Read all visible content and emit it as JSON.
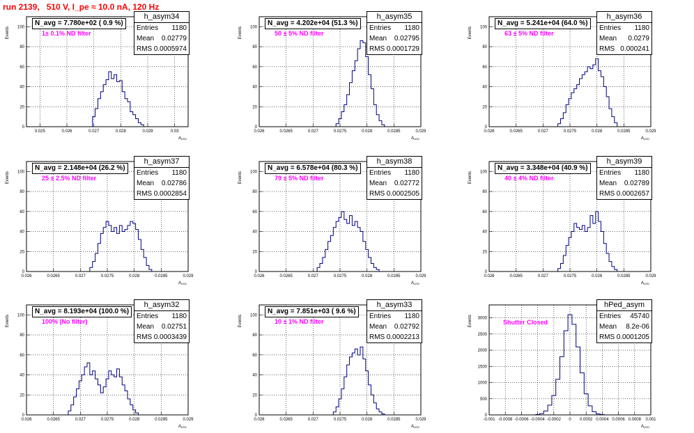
{
  "title": "run 2139,   510 V, I_pe ≈ 10.0 nA, 120 Hz",
  "ylabel": "Events",
  "xlabel": "A",
  "xlabel_sub": "LED",
  "chart_data": [
    {
      "type": "bar",
      "name": "h_asym34",
      "navg": "N_avg = 7.780e+02 ( 0.9 %)",
      "filter": "1± 0.1% ND filter",
      "entries": "1180",
      "mean": "0.02779",
      "rms": "0.0005974",
      "xlim": [
        0.0245,
        0.0305
      ],
      "xticks": [
        "0.025",
        "0.026",
        "0.027",
        "0.028",
        "0.029",
        "0.03"
      ],
      "yticks": [
        "0",
        "20",
        "40",
        "60",
        "80",
        "100"
      ],
      "ylim": [
        0,
        110
      ],
      "x": [
        0.027,
        0.0271,
        0.0272,
        0.0273,
        0.0274,
        0.0275,
        0.0276,
        0.0277,
        0.0278,
        0.0279,
        0.028,
        0.0281,
        0.0282,
        0.0283,
        0.0284,
        0.0285,
        0.0286,
        0.0287,
        0.0288
      ],
      "values": [
        10,
        18,
        28,
        35,
        42,
        47,
        55,
        48,
        52,
        45,
        46,
        35,
        28,
        25,
        15,
        12,
        8,
        4,
        2
      ]
    },
    {
      "type": "bar",
      "name": "h_asym35",
      "navg": "N_avg = 4.202e+04 (51.3 %)",
      "filter": "50 ± 5% ND filter",
      "entries": "1180",
      "mean": "0.02795",
      "rms": "0.0001729",
      "xlim": [
        0.026,
        0.029
      ],
      "xticks": [
        "0.026",
        "0.0265",
        "0.027",
        "0.0275",
        "0.028",
        "0.0285",
        "0.029"
      ],
      "yticks": [
        "0",
        "20",
        "40",
        "60",
        "80",
        "100"
      ],
      "ylim": [
        0,
        110
      ],
      "x": [
        0.02745,
        0.0275,
        0.02755,
        0.0276,
        0.02765,
        0.0277,
        0.02775,
        0.0278,
        0.02785,
        0.0279,
        0.02795,
        0.028,
        0.02805,
        0.0281,
        0.02815,
        0.0282,
        0.02825,
        0.0283
      ],
      "values": [
        3,
        8,
        15,
        22,
        32,
        44,
        56,
        66,
        78,
        86,
        84,
        70,
        52,
        38,
        22,
        12,
        6,
        2
      ]
    },
    {
      "type": "bar",
      "name": "h_asym36",
      "navg": "N_avg = 5.241e+04 (64.0 %)",
      "filter": "63 ± 5% ND filter",
      "entries": "1180",
      "mean": "0.0279",
      "rms": "0.000241",
      "xlim": [
        0.026,
        0.029
      ],
      "xticks": [
        "0.026",
        "0.0265",
        "0.027",
        "0.0275",
        "0.028",
        "0.0285",
        "0.029"
      ],
      "yticks": [
        "0",
        "20",
        "40",
        "60",
        "80",
        "100"
      ],
      "ylim": [
        0,
        110
      ],
      "x": [
        0.0273,
        0.02735,
        0.0274,
        0.02745,
        0.0275,
        0.02755,
        0.0276,
        0.02765,
        0.0277,
        0.02775,
        0.0278,
        0.02785,
        0.0279,
        0.02795,
        0.028,
        0.02805,
        0.0281,
        0.02815,
        0.0282,
        0.02825,
        0.0283,
        0.02835
      ],
      "values": [
        3,
        8,
        14,
        22,
        28,
        34,
        38,
        42,
        48,
        52,
        55,
        60,
        58,
        62,
        68,
        56,
        50,
        40,
        30,
        18,
        10,
        4
      ]
    },
    {
      "type": "bar",
      "name": "h_asym37",
      "navg": "N_avg = 2.148e+04 (26.2 %)",
      "filter": "25 ± 2.5% ND filter",
      "entries": "1180",
      "mean": "0.02786",
      "rms": "0.0002854",
      "xlim": [
        0.026,
        0.029
      ],
      "xticks": [
        "0.026",
        "0.0265",
        "0.027",
        "0.0275",
        "0.028",
        "0.0285",
        "0.029"
      ],
      "yticks": [
        "0",
        "20",
        "40",
        "60",
        "80",
        "100"
      ],
      "ylim": [
        0,
        110
      ],
      "x": [
        0.0272,
        0.02725,
        0.0273,
        0.02735,
        0.0274,
        0.02745,
        0.0275,
        0.02755,
        0.0276,
        0.02765,
        0.0277,
        0.02775,
        0.0278,
        0.02785,
        0.0279,
        0.02795,
        0.028,
        0.02805,
        0.0281,
        0.02815,
        0.0282,
        0.02825,
        0.0283
      ],
      "values": [
        4,
        10,
        18,
        28,
        38,
        44,
        50,
        46,
        40,
        44,
        38,
        46,
        40,
        42,
        46,
        50,
        48,
        42,
        32,
        22,
        14,
        6,
        2
      ]
    },
    {
      "type": "bar",
      "name": "h_asym38",
      "navg": "N_avg = 6.578e+04 (80.3 %)",
      "filter": "79 ± 5% ND filter",
      "entries": "1180",
      "mean": "0.02772",
      "rms": "0.0002505",
      "xlim": [
        0.026,
        0.029
      ],
      "xticks": [
        "0.026",
        "0.0265",
        "0.027",
        "0.0275",
        "0.028",
        "0.0285",
        "0.029"
      ],
      "yticks": [
        "0",
        "20",
        "40",
        "60",
        "80",
        "100"
      ],
      "ylim": [
        0,
        110
      ],
      "x": [
        0.0271,
        0.02715,
        0.0272,
        0.02725,
        0.0273,
        0.02735,
        0.0274,
        0.02745,
        0.0275,
        0.02755,
        0.0276,
        0.02765,
        0.0277,
        0.02775,
        0.0278,
        0.02785,
        0.0279,
        0.02795,
        0.028,
        0.02805,
        0.0281,
        0.02815,
        0.0282
      ],
      "values": [
        4,
        8,
        14,
        22,
        30,
        36,
        44,
        50,
        54,
        60,
        52,
        48,
        56,
        46,
        50,
        44,
        40,
        30,
        22,
        14,
        8,
        4,
        2
      ]
    },
    {
      "type": "bar",
      "name": "h_asym39",
      "navg": "N_avg = 3.348e+04 (40.9 %)",
      "filter": "40 ± 4% ND filter",
      "entries": "1180",
      "mean": "0.02789",
      "rms": "0.0002657",
      "xlim": [
        0.026,
        0.029
      ],
      "xticks": [
        "0.026",
        "0.0265",
        "0.027",
        "0.0275",
        "0.028",
        "0.0285",
        "0.029"
      ],
      "yticks": [
        "0",
        "20",
        "40",
        "60",
        "80",
        "100"
      ],
      "ylim": [
        0,
        110
      ],
      "x": [
        0.0273,
        0.02735,
        0.0274,
        0.02745,
        0.0275,
        0.02755,
        0.0276,
        0.02765,
        0.0277,
        0.02775,
        0.0278,
        0.02785,
        0.0279,
        0.02795,
        0.028,
        0.02805,
        0.0281,
        0.02815,
        0.0282,
        0.02825,
        0.0283,
        0.02835
      ],
      "values": [
        3,
        8,
        16,
        26,
        34,
        40,
        48,
        44,
        42,
        46,
        40,
        44,
        56,
        48,
        60,
        50,
        40,
        28,
        18,
        10,
        5,
        2
      ]
    },
    {
      "type": "bar",
      "name": "h_asym32",
      "navg": "N_avg = 8.193e+04 (100.0 %)",
      "filter": "100% (No filter)",
      "entries": "1180",
      "mean": "0.02751",
      "rms": "0.0003439",
      "xlim": [
        0.026,
        0.029
      ],
      "xticks": [
        "0.026",
        "0.0265",
        "0.027",
        "0.0275",
        "0.028",
        "0.0285",
        "0.029"
      ],
      "yticks": [
        "0",
        "20",
        "40",
        "60",
        "80",
        "100"
      ],
      "ylim": [
        0,
        110
      ],
      "x": [
        0.0268,
        0.02685,
        0.0269,
        0.02695,
        0.027,
        0.02705,
        0.0271,
        0.02715,
        0.0272,
        0.02725,
        0.0273,
        0.02735,
        0.0274,
        0.02745,
        0.0275,
        0.02755,
        0.0276,
        0.02765,
        0.0277,
        0.02775,
        0.0278,
        0.02785,
        0.0279,
        0.02795,
        0.028,
        0.02805
      ],
      "values": [
        4,
        10,
        18,
        26,
        34,
        40,
        48,
        52,
        40,
        44,
        36,
        30,
        22,
        28,
        36,
        44,
        40,
        38,
        46,
        38,
        30,
        24,
        16,
        10,
        5,
        2
      ]
    },
    {
      "type": "bar",
      "name": "h_asym33",
      "navg": "N_avg = 7.851e+03 ( 9.6 %)",
      "filter": "10 ± 1% ND filter",
      "entries": "1180",
      "mean": "0.02792",
      "rms": "0.0002213",
      "xlim": [
        0.026,
        0.029
      ],
      "xticks": [
        "0.026",
        "0.0265",
        "0.027",
        "0.0275",
        "0.028",
        "0.0285",
        "0.029"
      ],
      "yticks": [
        "0",
        "20",
        "40",
        "60",
        "80",
        "100"
      ],
      "ylim": [
        0,
        110
      ],
      "x": [
        0.0274,
        0.02745,
        0.0275,
        0.02755,
        0.0276,
        0.02765,
        0.0277,
        0.02775,
        0.0278,
        0.02785,
        0.0279,
        0.02795,
        0.028,
        0.02805,
        0.0281,
        0.02815,
        0.0282,
        0.02825,
        0.0283
      ],
      "values": [
        3,
        8,
        16,
        26,
        38,
        50,
        58,
        62,
        66,
        60,
        68,
        56,
        44,
        30,
        20,
        12,
        6,
        3,
        1
      ]
    },
    {
      "type": "bar",
      "name": "hPed_asym",
      "navg": "",
      "filter": "Shutter Closed",
      "entries": "45740",
      "mean": "8.2e-06",
      "rms": "0.0001205",
      "xlim": [
        -0.001,
        0.001
      ],
      "xticks": [
        "-0.001",
        "-0.0008",
        "-0.0006",
        "-0.0004",
        "-0.0002",
        "0",
        "0.0002",
        "0.0004",
        "0.0006",
        "0.0008",
        "0.001"
      ],
      "yticks": [
        "0",
        "500",
        "1000",
        "1500",
        "2000",
        "2500",
        "3000"
      ],
      "ylim": [
        0,
        3400
      ],
      "x": [
        -0.0004,
        -0.00035,
        -0.0003,
        -0.00025,
        -0.0002,
        -0.00015,
        -0.0001,
        -5e-05,
        0,
        5e-05,
        0.0001,
        0.00015,
        0.0002,
        0.00025,
        0.0003,
        0.00035,
        0.0004
      ],
      "values": [
        10,
        40,
        120,
        300,
        600,
        1100,
        1800,
        2600,
        3100,
        2800,
        2100,
        1300,
        650,
        280,
        100,
        30,
        8
      ]
    }
  ]
}
